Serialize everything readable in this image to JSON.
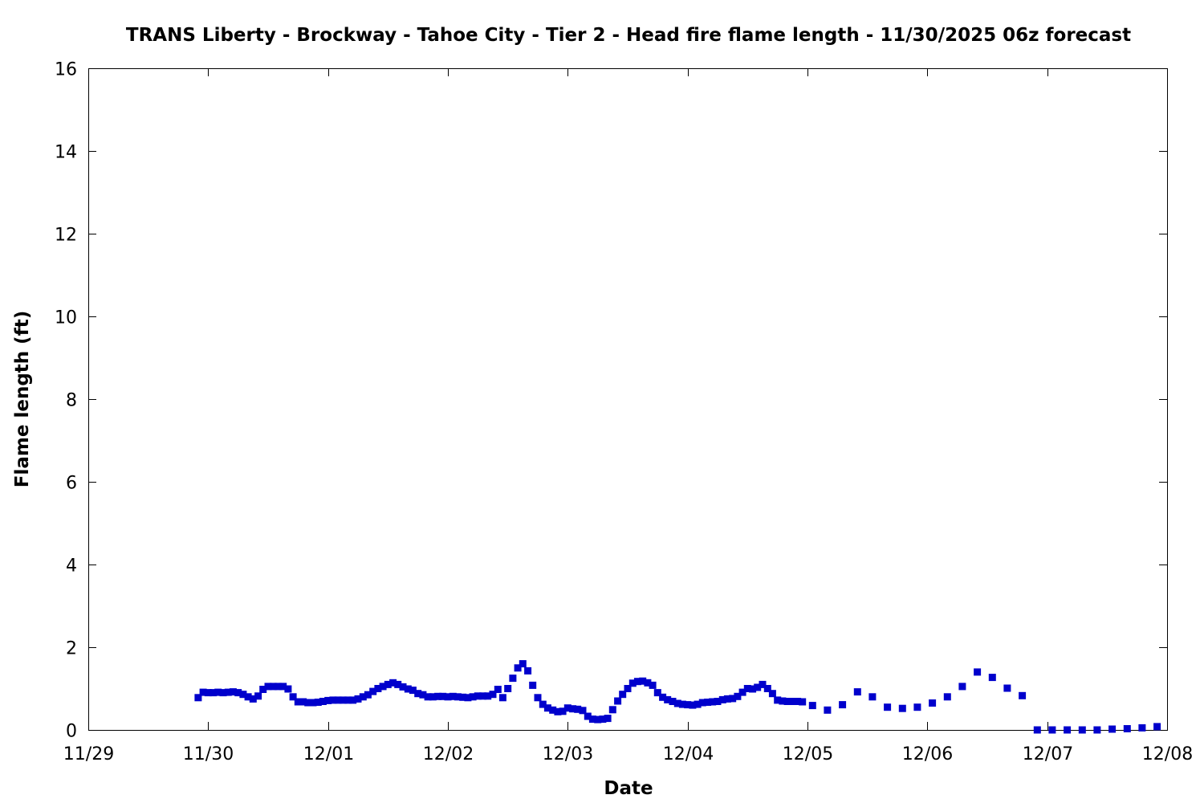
{
  "chart_data": {
    "type": "scatter",
    "title": "TRANS Liberty - Brockway - Tahoe City - Tier 2 - Head fire flame length - 11/30/2025 06z forecast",
    "xlabel": "Date",
    "ylabel": "Flame length (ft)",
    "x_units": "days since 11/29",
    "xlim": [
      0,
      9
    ],
    "ylim": [
      0,
      16
    ],
    "x_ticks": [
      {
        "value": 0,
        "label": "11/29"
      },
      {
        "value": 1,
        "label": "11/30"
      },
      {
        "value": 2,
        "label": "12/01"
      },
      {
        "value": 3,
        "label": "12/02"
      },
      {
        "value": 4,
        "label": "12/03"
      },
      {
        "value": 5,
        "label": "12/04"
      },
      {
        "value": 6,
        "label": "12/05"
      },
      {
        "value": 7,
        "label": "12/06"
      },
      {
        "value": 8,
        "label": "12/07"
      },
      {
        "value": 9,
        "label": "12/08"
      }
    ],
    "y_ticks": [
      {
        "value": 0,
        "label": "0"
      },
      {
        "value": 2,
        "label": "2"
      },
      {
        "value": 4,
        "label": "4"
      },
      {
        "value": 6,
        "label": "6"
      },
      {
        "value": 8,
        "label": "8"
      },
      {
        "value": 10,
        "label": "10"
      },
      {
        "value": 12,
        "label": "12"
      },
      {
        "value": 14,
        "label": "14"
      },
      {
        "value": 16,
        "label": "16"
      }
    ],
    "grid": false,
    "marker": "square",
    "series": [
      {
        "name": "",
        "color": "#0000cc",
        "points": [
          [
            0.917,
            0.78
          ],
          [
            0.958,
            0.91
          ],
          [
            1.0,
            0.9
          ],
          [
            1.042,
            0.9
          ],
          [
            1.083,
            0.91
          ],
          [
            1.125,
            0.9
          ],
          [
            1.167,
            0.91
          ],
          [
            1.208,
            0.92
          ],
          [
            1.25,
            0.9
          ],
          [
            1.292,
            0.86
          ],
          [
            1.333,
            0.8
          ],
          [
            1.375,
            0.75
          ],
          [
            1.417,
            0.82
          ],
          [
            1.458,
            0.98
          ],
          [
            1.5,
            1.05
          ],
          [
            1.542,
            1.05
          ],
          [
            1.583,
            1.05
          ],
          [
            1.625,
            1.05
          ],
          [
            1.667,
            0.99
          ],
          [
            1.708,
            0.8
          ],
          [
            1.75,
            0.68
          ],
          [
            1.792,
            0.68
          ],
          [
            1.833,
            0.66
          ],
          [
            1.875,
            0.66
          ],
          [
            1.917,
            0.67
          ],
          [
            1.958,
            0.69
          ],
          [
            2.0,
            0.71
          ],
          [
            2.042,
            0.72
          ],
          [
            2.083,
            0.72
          ],
          [
            2.125,
            0.72
          ],
          [
            2.167,
            0.72
          ],
          [
            2.208,
            0.72
          ],
          [
            2.25,
            0.75
          ],
          [
            2.292,
            0.8
          ],
          [
            2.333,
            0.85
          ],
          [
            2.375,
            0.93
          ],
          [
            2.417,
            1.0
          ],
          [
            2.458,
            1.05
          ],
          [
            2.5,
            1.1
          ],
          [
            2.542,
            1.14
          ],
          [
            2.583,
            1.1
          ],
          [
            2.625,
            1.04
          ],
          [
            2.667,
            0.99
          ],
          [
            2.708,
            0.96
          ],
          [
            2.75,
            0.88
          ],
          [
            2.792,
            0.85
          ],
          [
            2.833,
            0.8
          ],
          [
            2.875,
            0.8
          ],
          [
            2.917,
            0.81
          ],
          [
            2.958,
            0.81
          ],
          [
            3.0,
            0.8
          ],
          [
            3.042,
            0.81
          ],
          [
            3.083,
            0.8
          ],
          [
            3.125,
            0.79
          ],
          [
            3.167,
            0.78
          ],
          [
            3.208,
            0.8
          ],
          [
            3.25,
            0.82
          ],
          [
            3.292,
            0.82
          ],
          [
            3.333,
            0.82
          ],
          [
            3.375,
            0.86
          ],
          [
            3.417,
            0.98
          ],
          [
            3.458,
            0.78
          ],
          [
            3.5,
            1.0
          ],
          [
            3.542,
            1.25
          ],
          [
            3.583,
            1.5
          ],
          [
            3.625,
            1.6
          ],
          [
            3.667,
            1.43
          ],
          [
            3.708,
            1.08
          ],
          [
            3.75,
            0.78
          ],
          [
            3.792,
            0.62
          ],
          [
            3.833,
            0.53
          ],
          [
            3.875,
            0.48
          ],
          [
            3.917,
            0.44
          ],
          [
            3.958,
            0.45
          ],
          [
            4.0,
            0.53
          ],
          [
            4.042,
            0.51
          ],
          [
            4.083,
            0.5
          ],
          [
            4.125,
            0.47
          ],
          [
            4.167,
            0.33
          ],
          [
            4.208,
            0.26
          ],
          [
            4.25,
            0.25
          ],
          [
            4.292,
            0.26
          ],
          [
            4.333,
            0.28
          ],
          [
            4.375,
            0.49
          ],
          [
            4.417,
            0.7
          ],
          [
            4.458,
            0.86
          ],
          [
            4.5,
            1.0
          ],
          [
            4.542,
            1.13
          ],
          [
            4.583,
            1.17
          ],
          [
            4.625,
            1.18
          ],
          [
            4.667,
            1.14
          ],
          [
            4.708,
            1.08
          ],
          [
            4.75,
            0.9
          ],
          [
            4.792,
            0.79
          ],
          [
            4.833,
            0.73
          ],
          [
            4.875,
            0.69
          ],
          [
            4.917,
            0.64
          ],
          [
            4.958,
            0.62
          ],
          [
            5.0,
            0.61
          ],
          [
            5.042,
            0.6
          ],
          [
            5.083,
            0.62
          ],
          [
            5.125,
            0.66
          ],
          [
            5.167,
            0.67
          ],
          [
            5.208,
            0.68
          ],
          [
            5.25,
            0.69
          ],
          [
            5.292,
            0.73
          ],
          [
            5.333,
            0.75
          ],
          [
            5.375,
            0.76
          ],
          [
            5.417,
            0.81
          ],
          [
            5.458,
            0.91
          ],
          [
            5.5,
            1.0
          ],
          [
            5.542,
            0.99
          ],
          [
            5.583,
            1.03
          ],
          [
            5.625,
            1.1
          ],
          [
            5.667,
            1.0
          ],
          [
            5.708,
            0.88
          ],
          [
            5.75,
            0.72
          ],
          [
            5.792,
            0.7
          ],
          [
            5.833,
            0.69
          ],
          [
            5.875,
            0.69
          ],
          [
            5.917,
            0.69
          ],
          [
            5.958,
            0.68
          ],
          [
            6.042,
            0.59
          ],
          [
            6.167,
            0.48
          ],
          [
            6.292,
            0.61
          ],
          [
            6.417,
            0.92
          ],
          [
            6.542,
            0.8
          ],
          [
            6.667,
            0.55
          ],
          [
            6.792,
            0.52
          ],
          [
            6.917,
            0.55
          ],
          [
            7.042,
            0.65
          ],
          [
            7.167,
            0.8
          ],
          [
            7.292,
            1.05
          ],
          [
            7.417,
            1.4
          ],
          [
            7.542,
            1.27
          ],
          [
            7.667,
            1.01
          ],
          [
            7.792,
            0.83
          ],
          [
            7.917,
            0.0
          ],
          [
            8.042,
            0.0
          ],
          [
            8.167,
            0.0
          ],
          [
            8.292,
            0.0
          ],
          [
            8.417,
            0.0
          ],
          [
            8.542,
            0.02
          ],
          [
            8.667,
            0.03
          ],
          [
            8.792,
            0.05
          ],
          [
            8.917,
            0.08
          ]
        ]
      }
    ]
  }
}
